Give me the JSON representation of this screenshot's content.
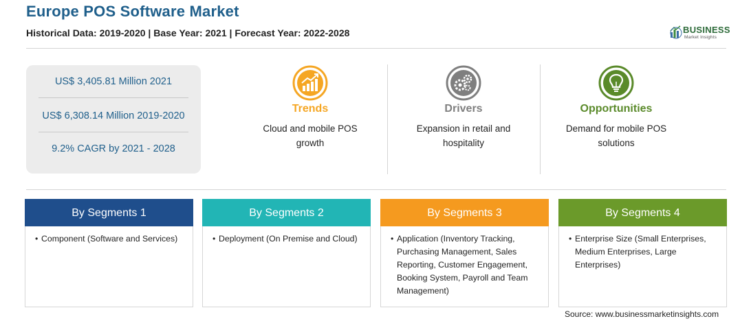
{
  "header": {
    "title": "Europe POS Software Market",
    "subtitle": "Historical Data: 2019-2020 | Base Year: 2021 | Forecast Year: 2022-2028"
  },
  "logo": {
    "name": "BUSINESS",
    "sub": "Market Insights",
    "colors": {
      "name": "#2e6b3a",
      "mark_blue": "#3a6ea5",
      "mark_green": "#3b8a3e"
    }
  },
  "stats": [
    {
      "text": "US$ 3,405.81 Million 2021"
    },
    {
      "text": "US$ 6,308.14 Million 2019-2020"
    },
    {
      "text": "9.2% CAGR by 2021 - 2028"
    }
  ],
  "highlights": [
    {
      "label": "Trends",
      "desc": "Cloud and mobile POS growth",
      "icon": "trend-chart-icon",
      "color": "#f5a623"
    },
    {
      "label": "Drivers",
      "desc": "Expansion in retail and hospitality",
      "icon": "gears-icon",
      "color": "#7f7f7f"
    },
    {
      "label": "Opportunities",
      "desc": "Demand for mobile POS solutions",
      "icon": "lightbulb-icon",
      "color": "#5a8a2a"
    }
  ],
  "segments": [
    {
      "title": "By Segments 1",
      "color": "#1f4e8c",
      "items": [
        "Component (Software and Services)"
      ]
    },
    {
      "title": "By Segments 2",
      "color": "#22b5b5",
      "items": [
        "Deployment (On Premise and Cloud)"
      ]
    },
    {
      "title": "By Segments 3",
      "color": "#f59a1f",
      "items": [
        "Application (Inventory Tracking, Purchasing Management, Sales Reporting, Customer Engagement, Booking System, Payroll and Team Management)"
      ]
    },
    {
      "title": "By Segments 4",
      "color": "#6b9a2a",
      "items": [
        "Enterprise Size (Small Enterprises, Medium Enterprises, Large Enterprises)"
      ]
    }
  ],
  "source": "Source: www.businessmarketinsights.com"
}
